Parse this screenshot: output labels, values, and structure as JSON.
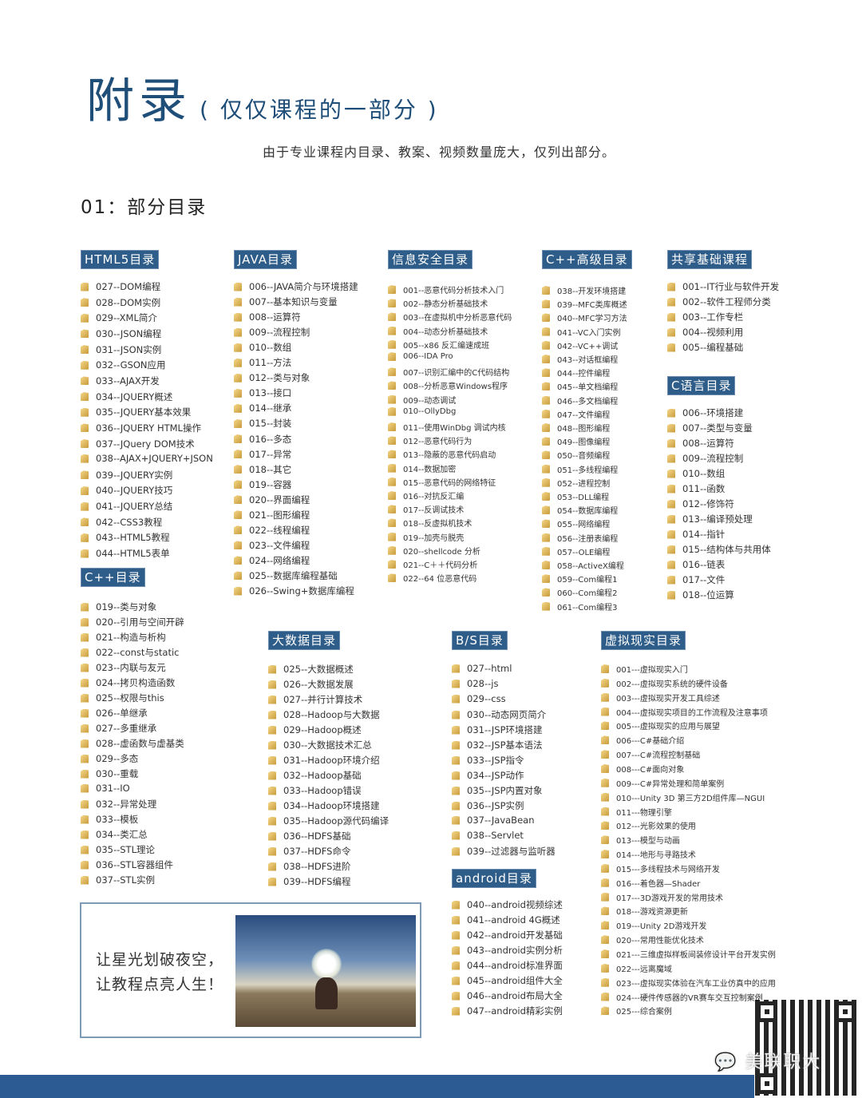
{
  "header": {
    "title": "附录",
    "title_note": "( 仅仅课程的一部分 )",
    "subtitle": "由于专业课程内目录、教案、视频数量庞大，仅列出部分。",
    "section_title": "01：部分目录"
  },
  "catalogs": [
    {
      "title": "HTML5目录",
      "items": [
        "027--DOM编程",
        "028--DOM实例",
        "029--XML简介",
        "030--JSON编程",
        "031--JSON实例",
        "032--GSON应用",
        "033--AJAX开发",
        "034--JQUERY概述",
        "035--JQUERY基本效果",
        "036--JQUERY HTML操作",
        "037--JQuery DOM技术",
        "038--AJAX+JQUERY+JSON",
        "039--JQUERY实例",
        "040--JQUERY技巧",
        "041--JQUERY总结",
        "042--CSS3教程",
        "043--HTML5教程",
        "044--HTML5表单"
      ]
    },
    {
      "title": "JAVA目录",
      "items": [
        "006--JAVA简介与环境搭建",
        "007--基本知识与变量",
        "008--运算符",
        "009--流程控制",
        "010--数组",
        "011--方法",
        "012--类与对象",
        "013--接口",
        "014--继承",
        "015--封装",
        "016--多态",
        "017--异常",
        "018--其它",
        "019--容器",
        "020--界面编程",
        "021--图形编程",
        "022--线程编程",
        "023--文件编程",
        "024--网络编程",
        "025--数据库编程基础",
        "026--Swing+数据库编程"
      ]
    },
    {
      "title": "信息安全目录",
      "items": [
        "001--恶意代码分析技术入门",
        "002--静态分析基础技术",
        "003--在虚拟机中分析恶意代码",
        "004--动态分析基础技术",
        "005--x86 反汇编速成班",
        "006--IDA Pro",
        "007--识别汇编中的C代码结构",
        "008--分析恶意Windows程序",
        "009--动态调试",
        "010--OllyDbg",
        "011--使用WinDbg 调试内核",
        "012--恶意代码行为",
        "013--隐蔽的恶意代码启动",
        "014--数据加密",
        "015--恶意代码的网络特征",
        "016--对抗反汇编",
        "017--反调试技术",
        "018--反虚拟机技术",
        "019--加壳与脱壳",
        "020--shellcode 分析",
        "021--C＋＋代码分析",
        "022--64 位恶意代码"
      ]
    },
    {
      "title": "C++高级目录",
      "items": [
        "038--开发环境搭建",
        "039--MFC类库概述",
        "040--MFC学习方法",
        "041--VC入门实例",
        "042--VC++调试",
        "043--对话框编程",
        "044--控件编程",
        "045--单文档编程",
        "046--多文档编程",
        "047--文件编程",
        "048--图形编程",
        "049--图像编程",
        "050--音频编程",
        "051--多线程编程",
        "052--进程控制",
        "053--DLL编程",
        "054--数据库编程",
        "055--网络编程",
        "056--注册表编程",
        "057--OLE编程",
        "058--ActiveX编程",
        "059--Com编程1",
        "060--Com编程2",
        "061--Com编程3"
      ]
    },
    {
      "title": "共享基础课程",
      "items": [
        "001--IT行业与软件开发",
        "002--软件工程师分类",
        "003--工作专栏",
        "004--视频利用",
        "005--编程基础"
      ]
    },
    {
      "title": "C语言目录",
      "items": [
        "006--环境搭建",
        "007--类型与变量",
        "008--运算符",
        "009--流程控制",
        "010--数组",
        "011--函数",
        "012--修饰符",
        "013--编译预处理",
        "014--指针",
        "015--结构体与共用体",
        "016--链表",
        "017--文件",
        "018--位运算"
      ]
    },
    {
      "title": "C++目录",
      "items": [
        "019--类与对象",
        "020--引用与空间开辟",
        "021--构造与析构",
        "022--const与static",
        "023--内联与友元",
        "024--拷贝构造函数",
        "025--权限与this",
        "026--单继承",
        "027--多重继承",
        "028--虚函数与虚基类",
        "029--多态",
        "030--重载",
        "031--IO",
        "032--异常处理",
        "033--模板",
        "034--类汇总",
        "035--STL理论",
        "036--STL容器组件",
        "037--STL实例"
      ]
    },
    {
      "title": "大数据目录",
      "items": [
        "025--大数据概述",
        "026--大数据发展",
        "027--并行计算技术",
        "028--Hadoop与大数据",
        "029--Hadoop概述",
        "030--大数据技术汇总",
        "031--Hadoop环境介绍",
        "032--Hadoop基础",
        "033--Hadoop错误",
        "034--Hadoop环境搭建",
        "035--Hadoop源代码编译",
        "036--HDFS基础",
        "037--HDFS命令",
        "038--HDFS进阶",
        "039--HDFS编程"
      ]
    },
    {
      "title": "B/S目录",
      "items": [
        "027--html",
        "028--js",
        "029--css",
        "030--动态网页简介",
        "031--JSP环境搭建",
        "032--JSP基本语法",
        "033--JSP指令",
        "034--JSP动作",
        "035--JSP内置对象",
        "036--JSP实例",
        "037--JavaBean",
        "038--Servlet",
        "039--过滤器与监听器"
      ]
    },
    {
      "title": "android目录",
      "items": [
        "040--android视频综述",
        "041--android 4G概述",
        "042--android开发基础",
        "043--android实例分析",
        "044--android标准界面",
        "045--android组件大全",
        "046--android布局大全",
        "047--android精彩实例"
      ]
    },
    {
      "title": "虚拟现实目录",
      "items": [
        "001---虚拟现实入门",
        "002---虚拟现实系统的硬件设备",
        "003---虚拟现实开发工具综述",
        "004---虚拟现实项目的工作流程及注意事项",
        "005---虚拟现实的应用与展望",
        "006---C#基础介绍",
        "007---C#流程控制基础",
        "008---C#面向对象",
        "009---C#异常处理和简单案例",
        "010---Unity 3D 第三方2D组件库—NGUI",
        "011---物理引擎",
        "012---光影效果的使用",
        "013---模型与动画",
        "014---地形与寻路技术",
        "015---多线程技术与网络开发",
        "016---着色器—Shader",
        "017---3D游戏开发的常用技术",
        "018---游戏资源更新",
        "019---Unity 2D游戏开发",
        "020---常用性能优化技术",
        "021---三维虚拟样板间装修设计平台开发实例",
        "022---远离魔域",
        "023---虚拟现实体验在汽车工业仿真中的应用",
        "024---硬件传感器的VR赛车交互控制案例",
        "025---综合案例"
      ]
    }
  ],
  "promo": {
    "line1": "让星光划破夜空，",
    "line2": "让教程点亮人生！"
  },
  "watermark": "美联职大",
  "colors": {
    "accent": "#1f4e79",
    "header_bg": "#2f5d8a",
    "bar": "#2c5a92"
  }
}
